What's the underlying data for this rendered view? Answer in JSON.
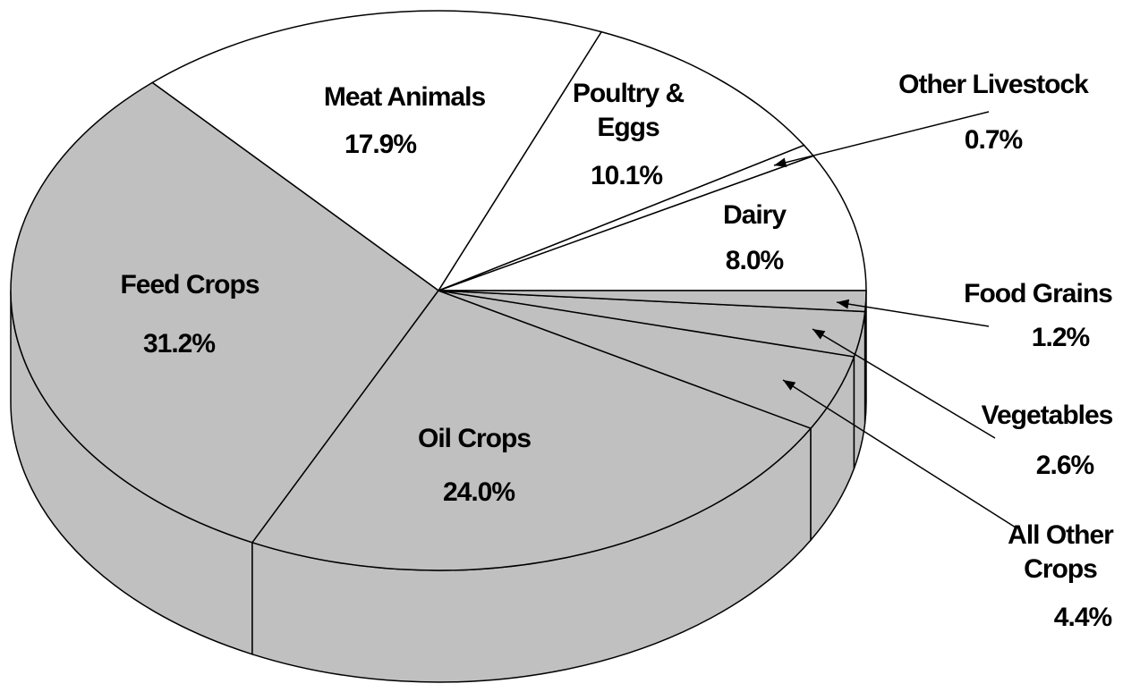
{
  "chart_data": {
    "type": "pie",
    "categories": [
      "Dairy",
      "Other Livestock",
      "Poultry & Eggs",
      "Meat Animals",
      "Feed Crops",
      "Oil Crops",
      "All Other Crops",
      "Vegetables",
      "Food Grains"
    ],
    "values": [
      8.0,
      0.7,
      10.1,
      17.9,
      31.2,
      24.0,
      4.4,
      2.6,
      1.2
    ],
    "value_labels": [
      "8.0%",
      "0.7%",
      "10.1%",
      "17.9%",
      "31.2%",
      "24.0%",
      "4.4%",
      "2.6%",
      "1.2%"
    ],
    "colors": [
      "#ffffff",
      "#ffffff",
      "#ffffff",
      "#ffffff",
      "#c0c0c0",
      "#c0c0c0",
      "#c0c0c0",
      "#c0c0c0",
      "#c0c0c0"
    ]
  }
}
